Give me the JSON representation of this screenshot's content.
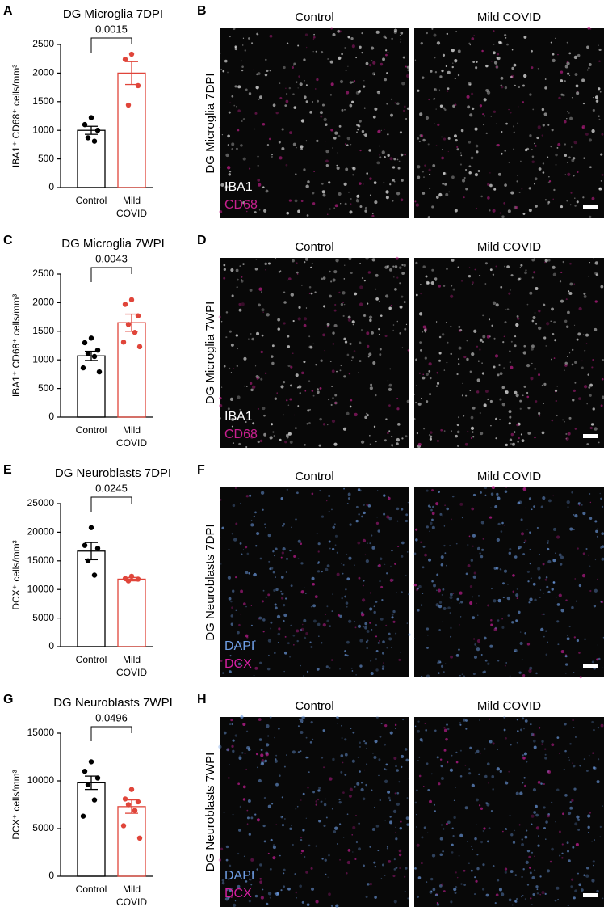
{
  "chart_data": [
    {
      "type": "bar",
      "panel": "A",
      "title": "DG Microglia 7DPI",
      "ylabel": "IBA1⁺ CD68⁺ cells/mm³",
      "categories": [
        "Control",
        "Mild COVID"
      ],
      "colors": [
        "#000000",
        "#e0453a"
      ],
      "values": [
        1000,
        2000
      ],
      "errors": [
        70,
        200
      ],
      "points": [
        [
          1220,
          1100,
          1000,
          870,
          810
        ],
        [
          2330,
          2240,
          1780,
          1440
        ]
      ],
      "annotation": "0.0015",
      "ylim": [
        0,
        2500
      ],
      "yticks": [
        0,
        500,
        1000,
        1500,
        2000,
        2500
      ]
    },
    {
      "type": "bar",
      "panel": "C",
      "title": "DG Microglia 7WPI",
      "ylabel": "IBA1⁺ CD68⁺ cells/mm³",
      "categories": [
        "Control",
        "Mild COVID"
      ],
      "colors": [
        "#000000",
        "#e0453a"
      ],
      "values": [
        1070,
        1650
      ],
      "errors": [
        80,
        150
      ],
      "points": [
        [
          1380,
          1300,
          1170,
          1110,
          1060,
          860,
          790
        ],
        [
          2050,
          1970,
          1770,
          1620,
          1480,
          1310,
          1230
        ]
      ],
      "annotation": "0.0043",
      "ylim": [
        0,
        2500
      ],
      "yticks": [
        0,
        500,
        1000,
        1500,
        2000,
        2500
      ]
    },
    {
      "type": "bar",
      "panel": "E",
      "title": "DG Neuroblasts 7DPI",
      "ylabel": "DCX⁺ cells/mm³",
      "categories": [
        "Control",
        "Mild COVID"
      ],
      "colors": [
        "#000000",
        "#e0453a"
      ],
      "values": [
        16700,
        11800
      ],
      "errors": [
        1500,
        300
      ],
      "points": [
        [
          20800,
          17700,
          17200,
          15000,
          12500
        ],
        [
          12300,
          11900,
          11800,
          11500
        ]
      ],
      "annotation": "0.0245",
      "ylim": [
        0,
        25000
      ],
      "yticks": [
        0,
        5000,
        10000,
        15000,
        20000,
        25000
      ]
    },
    {
      "type": "bar",
      "panel": "G",
      "title": "DG Neuroblasts 7WPI",
      "ylabel": "DCX⁺ cells/mm³",
      "categories": [
        "Control",
        "Mild COVID"
      ],
      "colors": [
        "#000000",
        "#e0453a"
      ],
      "values": [
        9800,
        7300
      ],
      "errors": [
        700,
        700
      ],
      "points": [
        [
          12000,
          11000,
          10300,
          9600,
          8000,
          6300
        ],
        [
          9100,
          8100,
          7800,
          7500,
          6900,
          5300,
          4000
        ]
      ],
      "annotation": "0.0496",
      "ylim": [
        0,
        15000
      ],
      "yticks": [
        0,
        5000,
        10000,
        15000
      ]
    }
  ],
  "images": [
    {
      "panel": "B",
      "label": "DG Microglia 7DPI",
      "columns": [
        "Control",
        "Mild COVID"
      ],
      "stains": [
        {
          "text": "IBA1",
          "color": "#ffffff"
        },
        {
          "text": "CD68",
          "color": "#c8208f"
        }
      ]
    },
    {
      "panel": "D",
      "label": "DG Microglia 7WPI",
      "columns": [
        "Control",
        "Mild COVID"
      ],
      "stains": [
        {
          "text": "IBA1",
          "color": "#ffffff"
        },
        {
          "text": "CD68",
          "color": "#c8208f"
        }
      ]
    },
    {
      "panel": "F",
      "label": "DG Neuroblasts 7DPI",
      "columns": [
        "Control",
        "Mild COVID"
      ],
      "stains": [
        {
          "text": "DAPI",
          "color": "#6f9fe6"
        },
        {
          "text": "DCX",
          "color": "#d41fa0"
        }
      ]
    },
    {
      "panel": "H",
      "label": "DG Neuroblasts 7WPI",
      "columns": [
        "Control",
        "Mild COVID"
      ],
      "stains": [
        {
          "text": "DAPI",
          "color": "#6f9fe6"
        },
        {
          "text": "DCX",
          "color": "#d41fa0"
        }
      ]
    }
  ]
}
